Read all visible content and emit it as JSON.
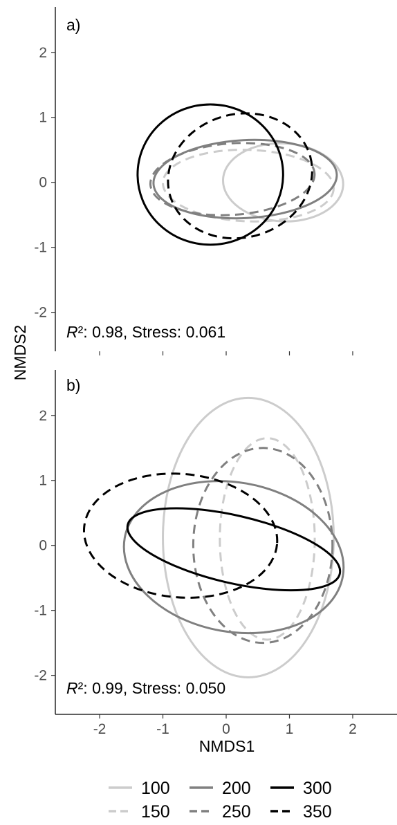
{
  "chart_data": [
    {
      "type": "scatter",
      "panel_label": "a)",
      "xlabel": "",
      "ylabel": "NMDS2",
      "xlim": [
        -2.7,
        2.7
      ],
      "ylim": [
        -2.6,
        2.7
      ],
      "y_ticks": [
        2,
        1,
        0,
        -1,
        -2
      ],
      "y_tick_labels": [
        "2",
        "1",
        "0",
        "-1",
        "-2"
      ],
      "x_ticks": [
        -2,
        -1,
        0,
        1,
        2
      ],
      "grid": false,
      "annotation": {
        "r2_symbol": "R",
        "r2_sup": "²",
        "r2_rest": ": 0.98,  Stress: 0.061"
      },
      "series": [
        {
          "name": "100",
          "color": "#cccccc",
          "dash": "solid",
          "ellipse": {
            "cx": 0.9,
            "cy": 0.0,
            "rx": 0.95,
            "ry": 0.6,
            "angle": -3
          }
        },
        {
          "name": "150",
          "color": "#cccccc",
          "dash": "dashed",
          "ellipse": {
            "cx": 0.35,
            "cy": -0.05,
            "rx": 1.35,
            "ry": 0.55,
            "angle": -2
          }
        },
        {
          "name": "200",
          "color": "#808080",
          "dash": "solid",
          "ellipse": {
            "cx": 0.3,
            "cy": 0.05,
            "rx": 1.45,
            "ry": 0.6,
            "angle": 3
          }
        },
        {
          "name": "250",
          "color": "#808080",
          "dash": "dashed",
          "ellipse": {
            "cx": 0.1,
            "cy": 0.05,
            "rx": 1.3,
            "ry": 0.55,
            "angle": 4
          }
        },
        {
          "name": "300",
          "color": "#000000",
          "dash": "solid",
          "ellipse": {
            "cx": -0.25,
            "cy": 0.12,
            "rx": 1.15,
            "ry": 1.08,
            "angle": 0
          }
        },
        {
          "name": "350",
          "color": "#000000",
          "dash": "dashed",
          "ellipse": {
            "cx": 0.22,
            "cy": 0.1,
            "rx": 1.15,
            "ry": 0.95,
            "angle": 15
          }
        }
      ]
    },
    {
      "type": "scatter",
      "panel_label": "b)",
      "xlabel": "NMDS1",
      "ylabel": "NMDS2",
      "xlim": [
        -2.7,
        2.7
      ],
      "ylim": [
        -2.6,
        2.7
      ],
      "y_ticks": [
        2,
        1,
        0,
        -1,
        -2
      ],
      "y_tick_labels": [
        "2",
        "1",
        "0",
        "-1",
        "-2"
      ],
      "x_ticks": [
        -2,
        -1,
        0,
        1,
        2
      ],
      "x_tick_labels": [
        "-2",
        "-1",
        "0",
        "1",
        "2"
      ],
      "grid": false,
      "annotation": {
        "r2_symbol": "R",
        "r2_sup": "²",
        "r2_rest": ": 0.99,  Stress: 0.050"
      },
      "series": [
        {
          "name": "100",
          "color": "#cccccc",
          "dash": "solid",
          "ellipse": {
            "cx": 0.35,
            "cy": 0.12,
            "rx": 1.35,
            "ry": 2.15,
            "angle": 0
          }
        },
        {
          "name": "150",
          "color": "#cccccc",
          "dash": "dashed",
          "ellipse": {
            "cx": 0.65,
            "cy": 0.1,
            "rx": 0.75,
            "ry": 1.55,
            "angle": 0
          }
        },
        {
          "name": "200",
          "color": "#808080",
          "dash": "solid",
          "ellipse": {
            "cx": 0.12,
            "cy": -0.18,
            "rx": 1.75,
            "ry": 1.15,
            "angle": -10
          }
        },
        {
          "name": "250",
          "color": "#808080",
          "dash": "dashed",
          "ellipse": {
            "cx": 0.58,
            "cy": 0.0,
            "rx": 1.1,
            "ry": 1.5,
            "angle": 0
          }
        },
        {
          "name": "300",
          "color": "#000000",
          "dash": "solid",
          "ellipse": {
            "cx": 0.12,
            "cy": -0.06,
            "rx": 1.72,
            "ry": 0.52,
            "angle": -13
          }
        },
        {
          "name": "350",
          "color": "#000000",
          "dash": "dashed",
          "ellipse": {
            "cx": -0.72,
            "cy": 0.15,
            "rx": 1.53,
            "ry": 0.95,
            "angle": -5
          }
        }
      ]
    }
  ],
  "legend": {
    "placement": "bottom",
    "items": [
      {
        "label": "100",
        "color": "#cccccc",
        "dash": "solid"
      },
      {
        "label": "200",
        "color": "#808080",
        "dash": "solid"
      },
      {
        "label": "300",
        "color": "#000000",
        "dash": "solid"
      },
      {
        "label": "150",
        "color": "#cccccc",
        "dash": "dashed"
      },
      {
        "label": "250",
        "color": "#808080",
        "dash": "dashed"
      },
      {
        "label": "350",
        "color": "#000000",
        "dash": "dashed"
      }
    ]
  }
}
